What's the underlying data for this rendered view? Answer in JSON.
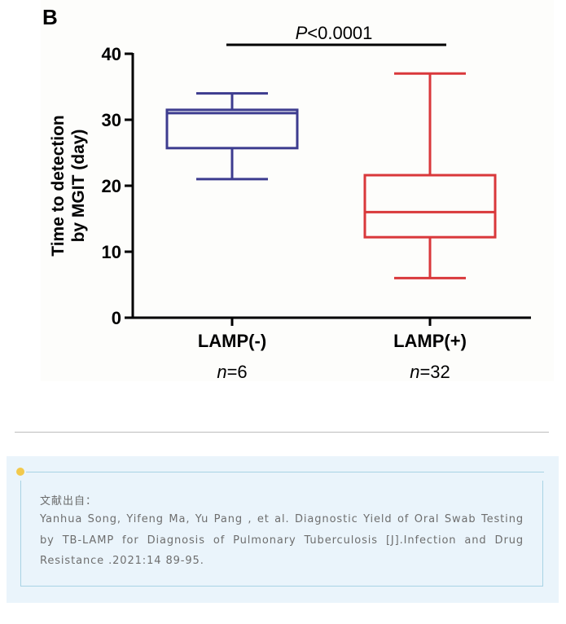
{
  "panel_label": "B",
  "chart_data": {
    "type": "box",
    "ylabel_line1": "Time to detection",
    "ylabel_line2": "by MGIT (day)",
    "ylim": [
      0,
      40
    ],
    "yticks": [
      0,
      10,
      20,
      30,
      40
    ],
    "categories": [
      "LAMP(-)",
      "LAMP(+)"
    ],
    "sample_sizes": [
      {
        "n_label": "n",
        "n_value": "=6"
      },
      {
        "n_label": "n",
        "n_value": "=32"
      }
    ],
    "boxes": [
      {
        "name": "LAMP(-)",
        "min": 21,
        "q1": 25.7,
        "median": 31,
        "q3": 31.5,
        "max": 34,
        "color": "#3d3c8f"
      },
      {
        "name": "LAMP(+)",
        "min": 6,
        "q1": 12.2,
        "median": 16,
        "q3": 21.6,
        "max": 37,
        "color": "#d9383b"
      }
    ],
    "significance": {
      "p_italic": "P",
      "p_rest": "<0.0001"
    },
    "grid": false
  },
  "reference": {
    "heading": "文献出自：",
    "text": "Yanhua Song, Yifeng Ma, Yu Pang , et al. Diagnostic Yield of Oral Swab Testing by TB-LAMP for Diagnosis of Pulmonary Tuberculosis [J].Infection and Drug Resistance .2021:14 89-95."
  }
}
